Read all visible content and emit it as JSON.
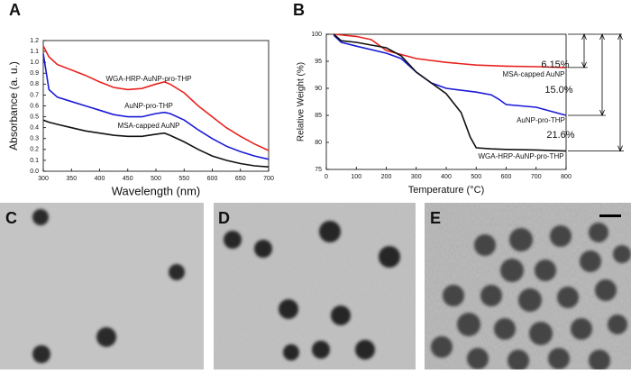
{
  "chart_data": [
    {
      "type": "line",
      "panel": "A",
      "xlabel": "Wavelength (nm)",
      "ylabel": "Absorbance (a. u.)",
      "x": [
        300,
        310,
        325,
        350,
        375,
        400,
        425,
        450,
        475,
        500,
        515,
        525,
        550,
        575,
        600,
        625,
        650,
        675,
        700
      ],
      "xlim": [
        300,
        700
      ],
      "xticks": [
        300,
        350,
        400,
        450,
        500,
        550,
        600,
        650,
        700
      ],
      "ylim": [
        0,
        1.2
      ],
      "yticks": [
        {
          "value": 0,
          "label": "0.0"
        },
        0.1,
        0.2,
        0.3,
        0.4,
        0.5,
        0.6,
        0.7,
        0.8,
        0.9,
        {
          "value": 1,
          "label": "1.0"
        },
        1.1,
        1.2
      ],
      "series": [
        {
          "name": "WGA-HRP-AuNP-pro-THP",
          "color": "#e8221e",
          "values": [
            1.15,
            1.05,
            0.98,
            0.93,
            0.88,
            0.82,
            0.77,
            0.75,
            0.76,
            0.8,
            0.82,
            0.8,
            0.72,
            0.6,
            0.5,
            0.4,
            0.32,
            0.25,
            0.19
          ]
        },
        {
          "name": "AuNP-pro-THP",
          "color": "#1a1ad6",
          "values": [
            1.08,
            0.75,
            0.68,
            0.64,
            0.6,
            0.56,
            0.52,
            0.5,
            0.5,
            0.53,
            0.54,
            0.53,
            0.47,
            0.38,
            0.3,
            0.23,
            0.18,
            0.14,
            0.11
          ]
        },
        {
          "name": "MSA-capped AuNP",
          "color": "#111111",
          "values": [
            0.47,
            0.45,
            0.43,
            0.4,
            0.37,
            0.35,
            0.33,
            0.32,
            0.32,
            0.34,
            0.35,
            0.33,
            0.27,
            0.2,
            0.14,
            0.1,
            0.07,
            0.05,
            0.04
          ]
        }
      ]
    },
    {
      "type": "line",
      "panel": "B",
      "xlabel": "Temperature (°C)",
      "ylabel": "Relative Weight (%)",
      "xlim": [
        0,
        800
      ],
      "xticks": [
        0,
        100,
        200,
        300,
        400,
        500,
        600,
        700,
        800
      ],
      "ylim": [
        75,
        100
      ],
      "yticks": [
        75,
        80,
        85,
        90,
        95,
        100
      ],
      "series": [
        {
          "name": "MSA-capped AuNP",
          "color": "#e8221e",
          "x": [
            25,
            100,
            150,
            200,
            300,
            400,
            500,
            600,
            700,
            800
          ],
          "values": [
            100,
            99.6,
            99,
            97,
            95.5,
            94.8,
            94.3,
            94.1,
            94,
            93.85
          ]
        },
        {
          "name": "AuNP-pro-THP",
          "color": "#1a1ad6",
          "x": [
            25,
            50,
            100,
            200,
            250,
            300,
            350,
            400,
            500,
            550,
            575,
            600,
            700,
            800
          ],
          "values": [
            99.8,
            98.5,
            97.8,
            96.5,
            95.5,
            93,
            91,
            90,
            89.3,
            88.8,
            88,
            87,
            86.5,
            85
          ]
        },
        {
          "name": "WGA-HRP-AuNP-pro-THP",
          "color": "#111111",
          "x": [
            25,
            50,
            100,
            150,
            200,
            250,
            300,
            350,
            400,
            450,
            480,
            500,
            550,
            600,
            700,
            800
          ],
          "values": [
            100,
            98.8,
            98.5,
            98,
            97.5,
            96,
            93,
            91,
            89,
            85.5,
            81,
            79,
            78.8,
            78.7,
            78.6,
            78.4
          ]
        }
      ],
      "annotations": [
        "6.15%",
        "15.0%",
        "21.6%"
      ]
    }
  ],
  "images": [
    {
      "panel": "C"
    },
    {
      "panel": "D"
    },
    {
      "panel": "E"
    }
  ]
}
